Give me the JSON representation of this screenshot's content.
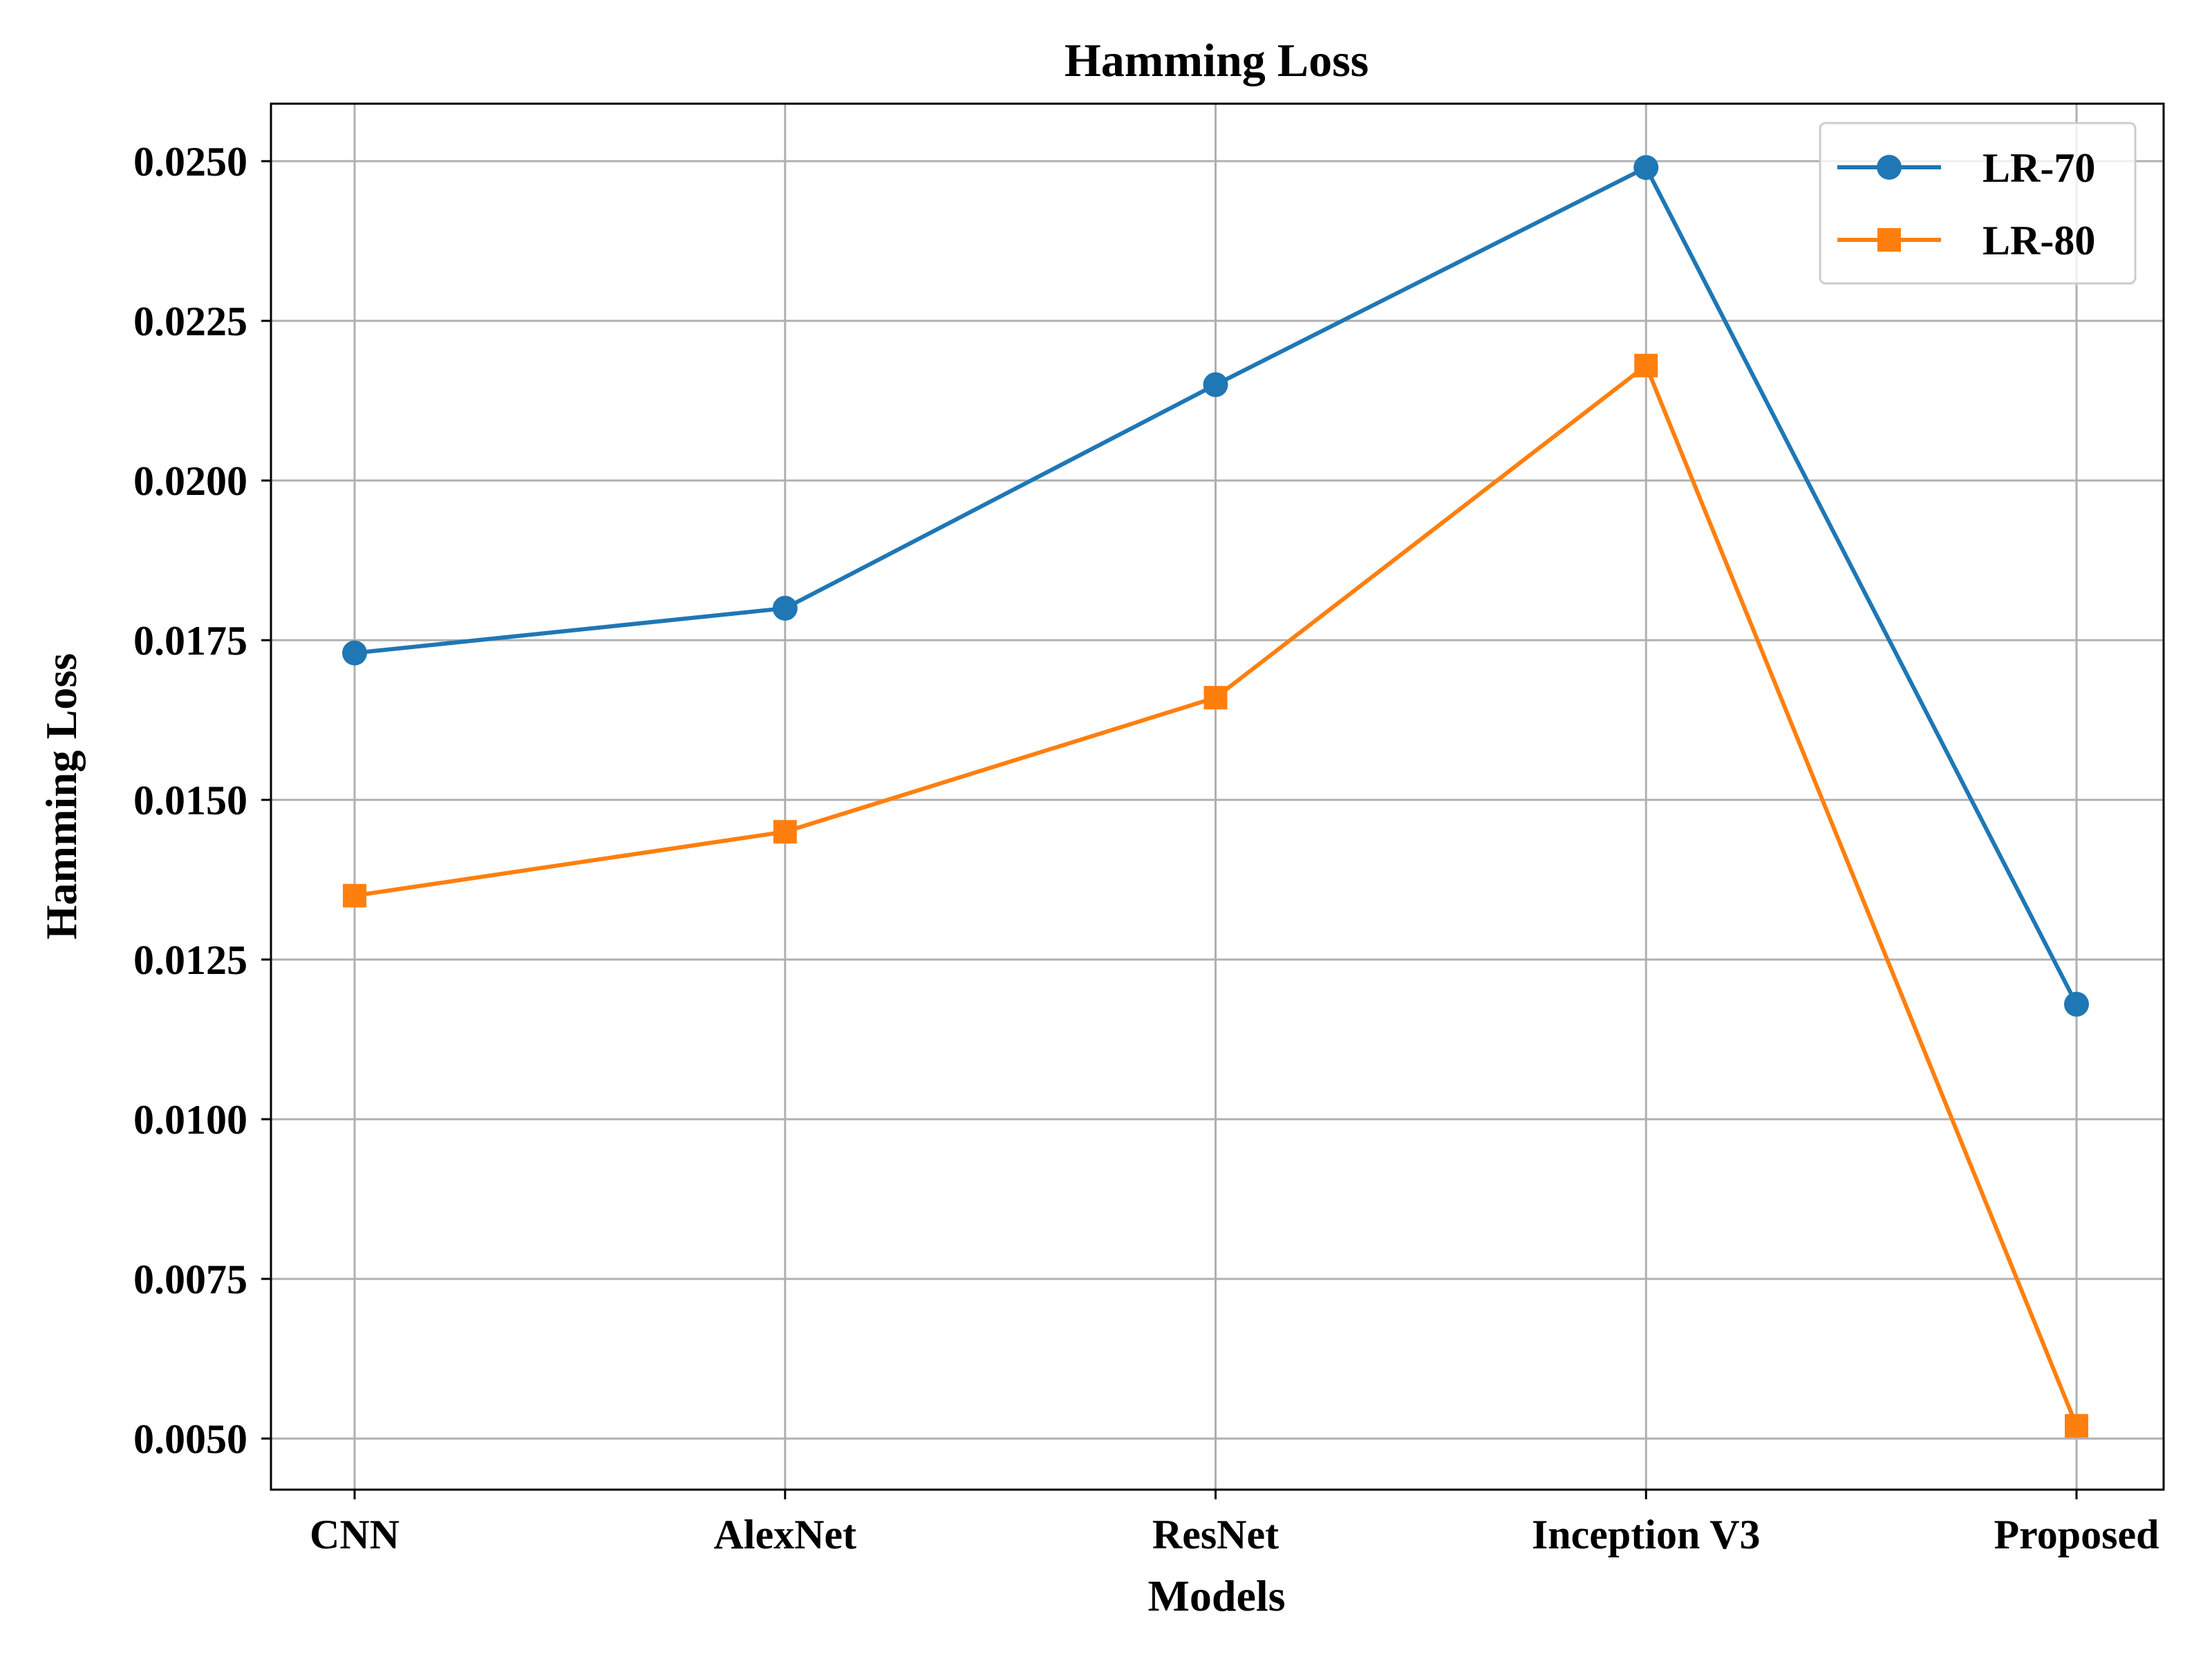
{
  "chart_data": {
    "type": "line",
    "title": "Hamming Loss",
    "xlabel": "Models",
    "ylabel": "Hamming Loss",
    "categories": [
      "CNN",
      "AlexNet",
      "ResNet",
      "Inception V3",
      "Proposed"
    ],
    "series": [
      {
        "name": "LR-70",
        "color": "#1f77b4",
        "marker": "circle",
        "values": [
          0.0173,
          0.018,
          0.0215,
          0.0249,
          0.0118
        ]
      },
      {
        "name": "LR-80",
        "color": "#ff7f0e",
        "marker": "square",
        "values": [
          0.0135,
          0.0145,
          0.0166,
          0.0218,
          0.0052
        ]
      }
    ],
    "yticks": [
      "0.0050",
      "0.0075",
      "0.0100",
      "0.0125",
      "0.0150",
      "0.0175",
      "0.0200",
      "0.0225",
      "0.0250"
    ],
    "ylim": [
      0.0042,
      0.0259
    ],
    "grid": true,
    "legend_position": "top-right"
  }
}
